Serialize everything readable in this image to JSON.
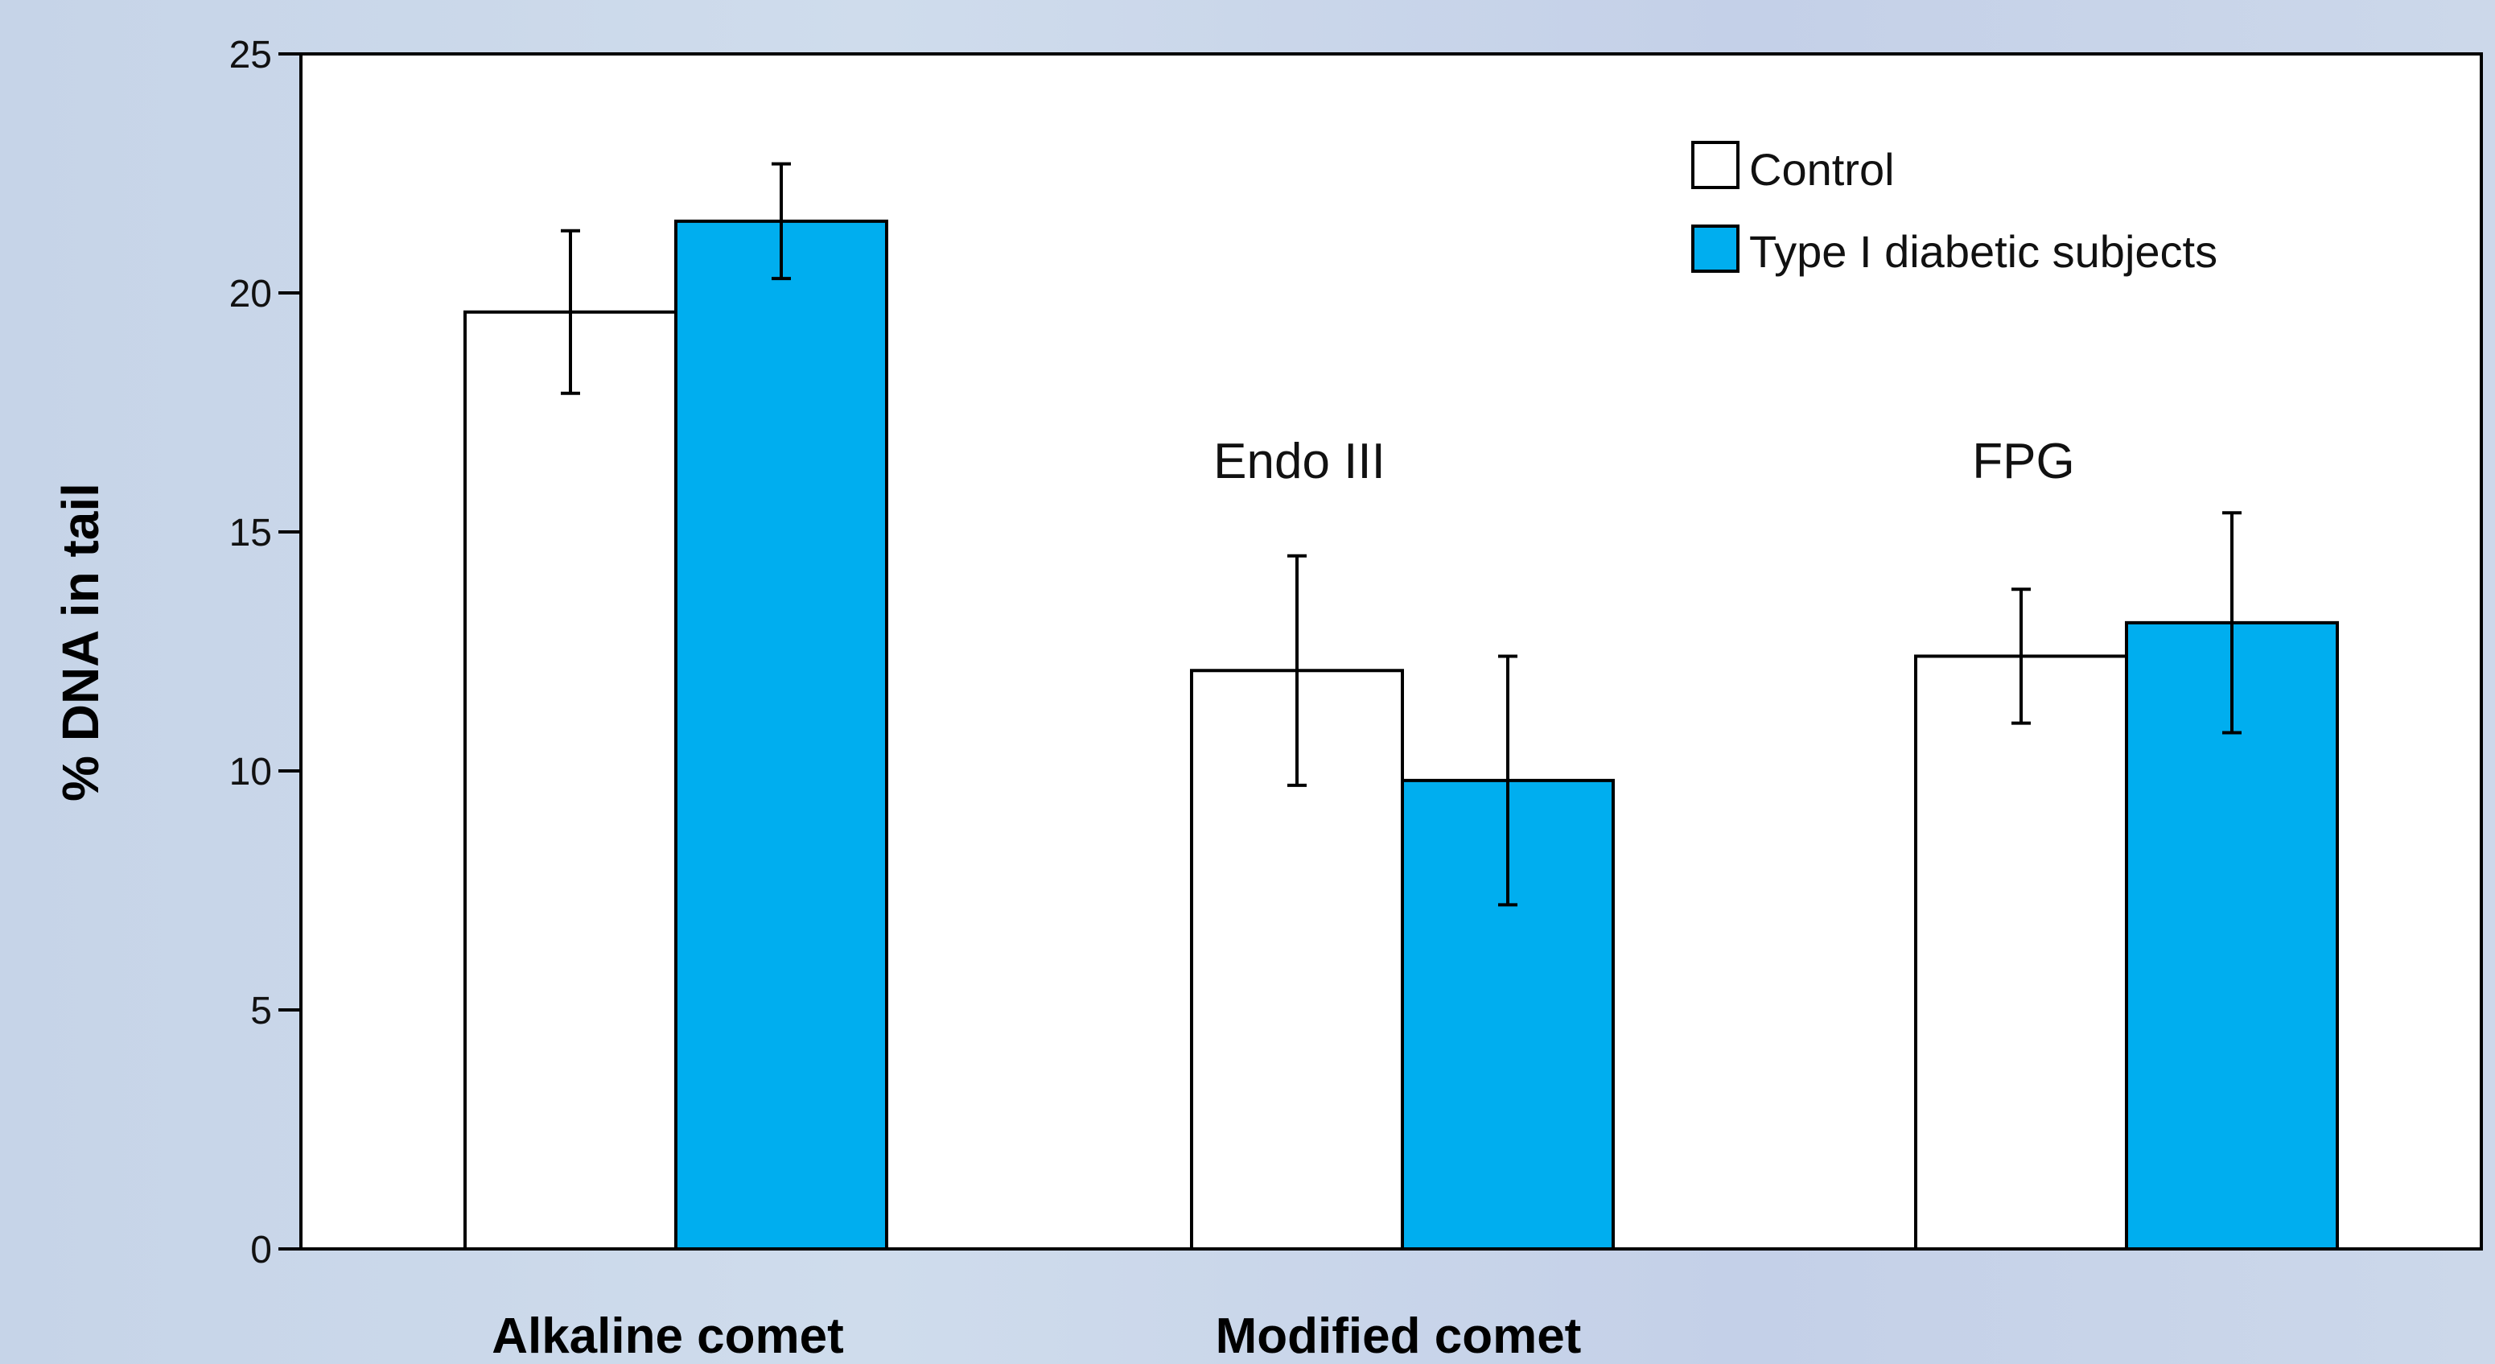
{
  "chart_data": {
    "type": "bar",
    "ylabel": "% DNA in tail",
    "ylim": [
      0,
      25
    ],
    "yticks": [
      0,
      5,
      10,
      15,
      20,
      25
    ],
    "grid": false,
    "legend_placement": "top-right",
    "categories": [
      "",
      "Endo III",
      "FPG"
    ],
    "category_groups": [
      {
        "label": "Alkaline comet",
        "categories": [
          ""
        ]
      },
      {
        "label": "Modified comet",
        "categories": [
          "Endo III",
          "FPG"
        ]
      }
    ],
    "series": [
      {
        "name": "Control",
        "color": "#ffffff",
        "values": [
          19.6,
          12.1,
          12.4
        ],
        "error": [
          1.7,
          2.4,
          1.4
        ]
      },
      {
        "name": "Type I diabetic subjects",
        "color": "#00aeef",
        "values": [
          21.5,
          9.8,
          13.1
        ],
        "error": [
          1.2,
          2.6,
          2.3
        ]
      }
    ]
  }
}
